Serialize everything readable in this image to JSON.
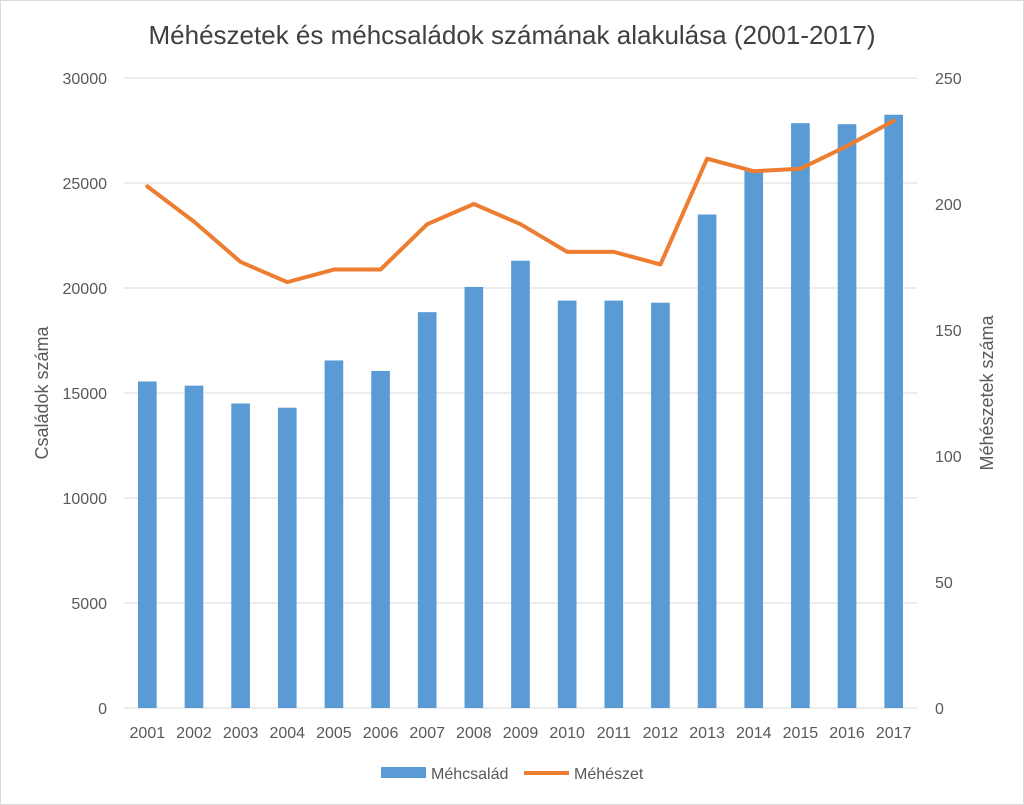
{
  "chart_data": {
    "type": "bar+line",
    "title": "Méhészetek és méhcsaládok számának alakulása (2001-2017)",
    "categories": [
      "2001",
      "2002",
      "2003",
      "2004",
      "2005",
      "2006",
      "2007",
      "2008",
      "2009",
      "2010",
      "2011",
      "2012",
      "2013",
      "2014",
      "2015",
      "2016",
      "2017"
    ],
    "series": [
      {
        "name": "Méhcsalád",
        "type": "bar",
        "axis": "left",
        "color": "#5b9bd5",
        "values": [
          15550,
          15350,
          14500,
          14300,
          16550,
          16050,
          18850,
          20050,
          21300,
          19400,
          19400,
          19300,
          23500,
          25600,
          27850,
          27800,
          28250
        ]
      },
      {
        "name": "Méhészet",
        "type": "line",
        "axis": "right",
        "color": "#ed7d31",
        "values": [
          207,
          193,
          177,
          169,
          174,
          174,
          192,
          200,
          192,
          181,
          181,
          176,
          218,
          213,
          214,
          223,
          233
        ]
      }
    ],
    "ylabel": "Családok száma",
    "y2label": "Méhészetek száma",
    "ylim": [
      0,
      30000
    ],
    "y2lim": [
      0,
      250
    ],
    "yticks": [
      "0",
      "5000",
      "10000",
      "15000",
      "20000",
      "25000",
      "30000"
    ],
    "y2ticks": [
      "0",
      "50",
      "100",
      "150",
      "200",
      "250"
    ],
    "grid": true,
    "legend": "bottom"
  }
}
